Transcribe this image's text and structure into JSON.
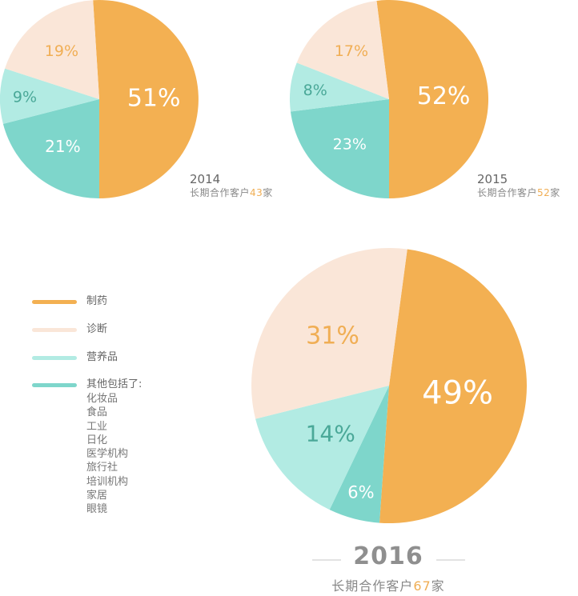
{
  "colors": {
    "pharma": "#f3b052",
    "diagnosis": "#fae6d8",
    "nutrition": "#b2ebe3",
    "other": "#7ed6cb",
    "accent_number": "#f0ae54"
  },
  "legend": {
    "items": [
      {
        "key": "pharma",
        "label": "制药"
      },
      {
        "key": "diagnosis",
        "label": "诊断"
      },
      {
        "key": "nutrition",
        "label": "营养品"
      },
      {
        "key": "other",
        "label": "其他包括了:"
      }
    ],
    "other_includes": [
      "化妆品",
      "食品",
      "工业",
      "日化",
      "医学机构",
      "旅行社",
      "培训机构",
      "家居",
      "眼镜"
    ]
  },
  "captions": [
    {
      "year": "2014",
      "prefix": "长期合作客户",
      "count": "43",
      "suffix": "家"
    },
    {
      "year": "2015",
      "prefix": "长期合作客户",
      "count": "52",
      "suffix": "家"
    },
    {
      "year": "2016",
      "prefix": "长期合作客户",
      "count": "67",
      "suffix": "家"
    }
  ],
  "chart_data": [
    {
      "type": "pie",
      "year": "2014",
      "slices": [
        {
          "key": "pharma",
          "value": 51,
          "label": "51%"
        },
        {
          "key": "other",
          "value": 21,
          "label": "21%"
        },
        {
          "key": "nutrition",
          "value": 9,
          "label": "9%"
        },
        {
          "key": "diagnosis",
          "value": 19,
          "label": "19%"
        }
      ]
    },
    {
      "type": "pie",
      "year": "2015",
      "slices": [
        {
          "key": "pharma",
          "value": 52,
          "label": "52%"
        },
        {
          "key": "other",
          "value": 23,
          "label": "23%"
        },
        {
          "key": "nutrition",
          "value": 8,
          "label": "8%"
        },
        {
          "key": "diagnosis",
          "value": 17,
          "label": "17%"
        }
      ]
    },
    {
      "type": "pie",
      "year": "2016",
      "slices": [
        {
          "key": "pharma",
          "value": 49,
          "label": "49%"
        },
        {
          "key": "other",
          "value": 6,
          "label": "6%"
        },
        {
          "key": "nutrition",
          "value": 14,
          "label": "14%"
        },
        {
          "key": "diagnosis",
          "value": 31,
          "label": "31%"
        }
      ]
    }
  ]
}
